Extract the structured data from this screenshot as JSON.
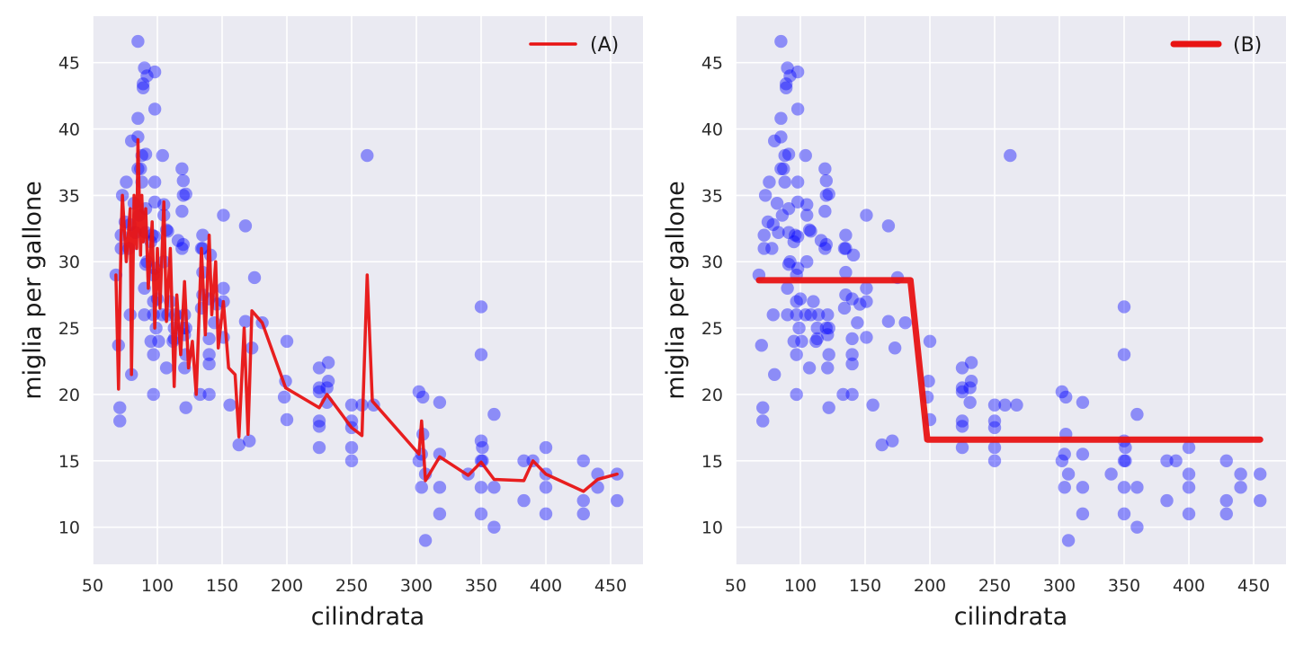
{
  "chart_data": [
    {
      "id": "A",
      "type": "scatter",
      "xlabel": "cilindrata",
      "ylabel": "miglia per gallone",
      "xlim": [
        50,
        475
      ],
      "ylim": [
        7.2,
        48.5
      ],
      "xticks": [
        50,
        100,
        150,
        200,
        250,
        300,
        350,
        400,
        450
      ],
      "yticks": [
        10,
        15,
        20,
        25,
        30,
        35,
        40,
        45
      ],
      "grid": true,
      "background": "#eaeaf2",
      "legend": {
        "placement": "top-right",
        "label": "(A)"
      },
      "point_color": "#0000ff",
      "line_color": "#e81313",
      "points": [
        [
          68,
          29
        ],
        [
          70,
          23.7
        ],
        [
          71,
          19
        ],
        [
          71,
          18
        ],
        [
          72,
          32
        ],
        [
          72,
          31
        ],
        [
          73,
          35
        ],
        [
          75,
          33
        ],
        [
          76,
          36
        ],
        [
          78,
          31
        ],
        [
          79,
          32.8
        ],
        [
          79,
          26
        ],
        [
          80,
          39.1
        ],
        [
          80,
          21.5
        ],
        [
          82,
          34.4
        ],
        [
          83,
          32.2
        ],
        [
          85,
          37
        ],
        [
          85,
          40.8
        ],
        [
          85,
          39.4
        ],
        [
          85,
          46.6
        ],
        [
          86,
          33.5
        ],
        [
          87,
          37
        ],
        [
          88,
          38
        ],
        [
          88,
          36
        ],
        [
          89,
          43.1
        ],
        [
          89,
          43.4
        ],
        [
          90,
          44.6
        ],
        [
          90,
          28
        ],
        [
          90,
          26
        ],
        [
          91,
          32.2
        ],
        [
          91,
          34
        ],
        [
          91,
          29.8
        ],
        [
          91,
          38.1
        ],
        [
          92,
          30
        ],
        [
          92,
          44
        ],
        [
          95,
          31.5
        ],
        [
          95,
          24
        ],
        [
          96,
          32
        ],
        [
          97,
          29
        ],
        [
          97,
          27
        ],
        [
          97,
          26
        ],
        [
          97,
          20
        ],
        [
          97,
          23
        ],
        [
          98,
          36
        ],
        [
          98,
          44.3
        ],
        [
          98,
          34.5
        ],
        [
          98,
          41.5
        ],
        [
          98,
          31.9
        ],
        [
          98,
          29.5
        ],
        [
          99,
          25
        ],
        [
          100,
          27.2
        ],
        [
          101,
          24
        ],
        [
          104,
          26
        ],
        [
          104,
          38
        ],
        [
          105,
          34.3
        ],
        [
          105,
          33.5
        ],
        [
          105,
          30
        ],
        [
          107,
          22
        ],
        [
          107,
          32.4
        ],
        [
          108,
          32.3
        ],
        [
          108,
          26
        ],
        [
          110,
          27
        ],
        [
          112,
          24
        ],
        [
          113,
          25
        ],
        [
          113,
          24.2
        ],
        [
          114,
          26
        ],
        [
          116,
          31.6
        ],
        [
          119,
          31
        ],
        [
          119,
          37
        ],
        [
          119,
          33.8
        ],
        [
          120,
          36.1
        ],
        [
          120,
          35
        ],
        [
          120,
          31.3
        ],
        [
          120,
          25
        ],
        [
          121,
          26
        ],
        [
          121,
          24.5
        ],
        [
          121,
          22
        ],
        [
          122,
          23
        ],
        [
          122,
          19
        ],
        [
          122,
          25
        ],
        [
          122,
          35.1
        ],
        [
          133,
          20
        ],
        [
          134,
          31
        ],
        [
          134,
          26.5
        ],
        [
          135,
          32
        ],
        [
          135,
          31
        ],
        [
          135,
          29.2
        ],
        [
          135,
          27.5
        ],
        [
          140,
          22.3
        ],
        [
          140,
          23
        ],
        [
          140,
          27.2
        ],
        [
          140,
          24.2
        ],
        [
          140,
          20
        ],
        [
          141,
          30.5
        ],
        [
          144,
          25.4
        ],
        [
          146,
          26.8
        ],
        [
          151,
          33.5
        ],
        [
          151,
          28
        ],
        [
          151,
          27
        ],
        [
          151,
          24.3
        ],
        [
          156,
          19.2
        ],
        [
          163,
          16.2
        ],
        [
          168,
          32.7
        ],
        [
          168,
          25.5
        ],
        [
          171,
          16.5
        ],
        [
          173,
          23.5
        ],
        [
          175,
          28.8
        ],
        [
          181,
          25.4
        ],
        [
          198,
          19.8
        ],
        [
          199,
          21
        ],
        [
          200,
          24
        ],
        [
          200,
          18.1
        ],
        [
          225,
          20.5
        ],
        [
          225,
          18
        ],
        [
          225,
          17.6
        ],
        [
          225,
          16
        ],
        [
          225,
          20.2
        ],
        [
          225,
          22
        ],
        [
          231,
          19.4
        ],
        [
          231,
          20.5
        ],
        [
          232,
          21
        ],
        [
          232,
          22.4
        ],
        [
          250,
          15
        ],
        [
          250,
          18
        ],
        [
          250,
          16
        ],
        [
          250,
          19.2
        ],
        [
          250,
          17.5
        ],
        [
          258,
          19.2
        ],
        [
          262,
          38
        ],
        [
          267,
          19.2
        ],
        [
          302,
          20.2
        ],
        [
          302,
          15
        ],
        [
          304,
          13
        ],
        [
          304,
          15.5
        ],
        [
          305,
          19.8
        ],
        [
          305,
          17
        ],
        [
          307,
          9
        ],
        [
          307,
          14
        ],
        [
          318,
          19.4
        ],
        [
          318,
          15.5
        ],
        [
          318,
          13
        ],
        [
          318,
          11
        ],
        [
          340,
          14
        ],
        [
          350,
          26.6
        ],
        [
          350,
          23
        ],
        [
          350,
          16.5
        ],
        [
          350,
          15
        ],
        [
          350,
          13
        ],
        [
          350,
          11
        ],
        [
          351,
          16
        ],
        [
          351,
          15
        ],
        [
          360,
          18.5
        ],
        [
          360,
          13
        ],
        [
          360,
          10
        ],
        [
          383,
          15
        ],
        [
          383,
          12
        ],
        [
          390,
          15
        ],
        [
          400,
          16
        ],
        [
          400,
          14
        ],
        [
          400,
          13
        ],
        [
          400,
          11
        ],
        [
          429,
          15
        ],
        [
          429,
          12
        ],
        [
          429,
          11
        ],
        [
          440,
          14
        ],
        [
          440,
          13
        ],
        [
          455,
          14
        ],
        [
          455,
          12
        ]
      ],
      "fit_line": [
        [
          68,
          29
        ],
        [
          70,
          20.4
        ],
        [
          72,
          32
        ],
        [
          73,
          35
        ],
        [
          76,
          30
        ],
        [
          79,
          34
        ],
        [
          80,
          21.5
        ],
        [
          82,
          35
        ],
        [
          84,
          31
        ],
        [
          85,
          39.2
        ],
        [
          87,
          30.5
        ],
        [
          88,
          35
        ],
        [
          89,
          31.5
        ],
        [
          91,
          34
        ],
        [
          93,
          28
        ],
        [
          96,
          33
        ],
        [
          98,
          25
        ],
        [
          100,
          31
        ],
        [
          102,
          26.5
        ],
        [
          105,
          34.5
        ],
        [
          107,
          25.5
        ],
        [
          110,
          31
        ],
        [
          113,
          20.6
        ],
        [
          115,
          27.5
        ],
        [
          118,
          23
        ],
        [
          121,
          28.5
        ],
        [
          124,
          22
        ],
        [
          127,
          24
        ],
        [
          130,
          20
        ],
        [
          134,
          31
        ],
        [
          137,
          24.5
        ],
        [
          140,
          32
        ],
        [
          142,
          26
        ],
        [
          145,
          30
        ],
        [
          147,
          23.5
        ],
        [
          151,
          27
        ],
        [
          155,
          22
        ],
        [
          160,
          21.5
        ],
        [
          163,
          16.8
        ],
        [
          167,
          25
        ],
        [
          170,
          17
        ],
        [
          173,
          26.3
        ],
        [
          181,
          25.4
        ],
        [
          199,
          20.5
        ],
        [
          225,
          19
        ],
        [
          231,
          20
        ],
        [
          250,
          17.5
        ],
        [
          258,
          16.9
        ],
        [
          262,
          29
        ],
        [
          266,
          19.5
        ],
        [
          302,
          15.5
        ],
        [
          304,
          18
        ],
        [
          307,
          13.5
        ],
        [
          318,
          15.3
        ],
        [
          340,
          13.9
        ],
        [
          350,
          14.9
        ],
        [
          360,
          13.6
        ],
        [
          383,
          13.5
        ],
        [
          390,
          15
        ],
        [
          400,
          14
        ],
        [
          429,
          12.7
        ],
        [
          440,
          13.6
        ],
        [
          455,
          14
        ]
      ]
    },
    {
      "id": "B",
      "type": "scatter",
      "xlabel": "cilindrata",
      "ylabel": "miglia per gallone",
      "xlim": [
        50,
        475
      ],
      "ylim": [
        7.2,
        48.5
      ],
      "xticks": [
        50,
        100,
        150,
        200,
        250,
        300,
        350,
        400,
        450
      ],
      "yticks": [
        10,
        15,
        20,
        25,
        30,
        35,
        40,
        45
      ],
      "grid": true,
      "background": "#eaeaf2",
      "legend": {
        "placement": "top-right",
        "label": "(B)"
      },
      "point_color": "#0000ff",
      "line_color": "#e81313",
      "fit_line": [
        [
          68,
          28.6
        ],
        [
          185,
          28.6
        ],
        [
          198,
          16.6
        ],
        [
          455,
          16.6
        ]
      ]
    }
  ]
}
